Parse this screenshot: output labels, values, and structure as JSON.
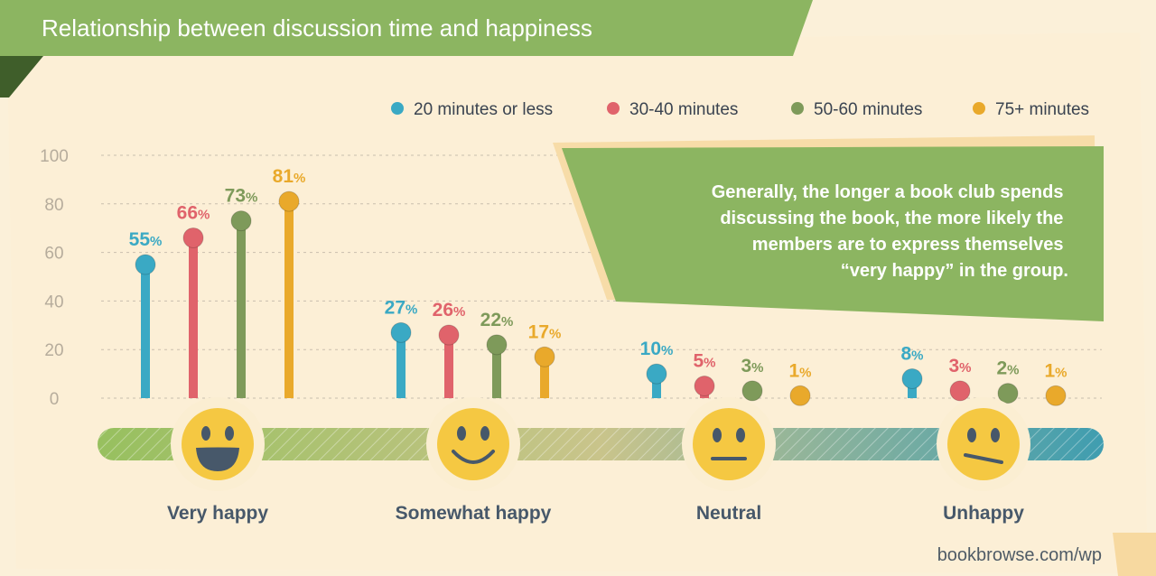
{
  "header": {
    "title": "Relationship between discussion time and happiness"
  },
  "callout": {
    "lines": [
      "Generally, the longer a book club spends",
      "discussing the book, the more likely the",
      "members are to express themselves",
      "“very happy” in the group."
    ]
  },
  "footer": {
    "source": "bookbrowse.com/wp"
  },
  "colors": {
    "background": "#fbf0d9",
    "banner_green": "#8cb561",
    "banner_dark": "#3f5e2a",
    "axis_text": "#b6ac9c",
    "category_text": "#47586a"
  },
  "chart_data": {
    "type": "lollipop",
    "ylim": [
      0,
      100
    ],
    "yticks": [
      "100",
      "80",
      "60",
      "40",
      "20",
      "0"
    ],
    "categories": [
      "Very happy",
      "Somewhat happy",
      "Neutral",
      "Unhappy"
    ],
    "category_icons": [
      "big-smile-face-icon",
      "smile-face-icon",
      "neutral-face-icon",
      "unhappy-face-icon"
    ],
    "series": [
      {
        "name": "20 minutes or less",
        "color": "#3aa9c4",
        "values": [
          55,
          27,
          10,
          8
        ],
        "labels": [
          "55%",
          "27%",
          "10%",
          "8%"
        ]
      },
      {
        "name": "30-40 minutes",
        "color": "#e0636b",
        "values": [
          66,
          26,
          5,
          3
        ],
        "labels": [
          "66%",
          "26%",
          "5%",
          "3%"
        ]
      },
      {
        "name": "50-60 minutes",
        "color": "#7e9a5a",
        "values": [
          73,
          22,
          3,
          2
        ],
        "labels": [
          "73%",
          "22%",
          "3%",
          "2%"
        ]
      },
      {
        "name": "75+ minutes",
        "color": "#e9a92b",
        "values": [
          81,
          17,
          1,
          1
        ],
        "labels": [
          "81%",
          "17%",
          "1%",
          "1%"
        ]
      }
    ],
    "legend_position": "top-right",
    "grid": true
  }
}
